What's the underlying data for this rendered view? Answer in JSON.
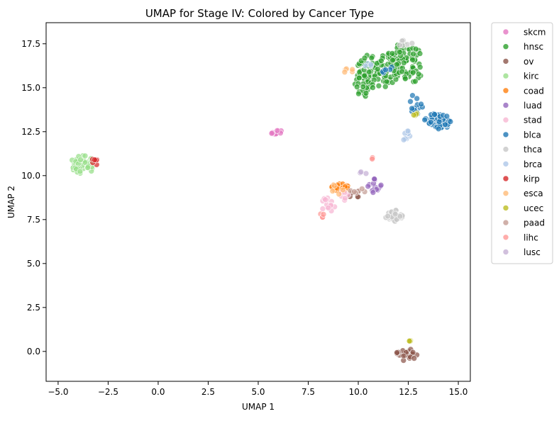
{
  "chart_data": {
    "type": "scatter",
    "title": "UMAP for Stage IV: Colored by Cancer Type",
    "xlabel": "UMAP 1",
    "ylabel": "UMAP 2",
    "xlim": [
      -5.6,
      15.6
    ],
    "ylim": [
      -1.7,
      18.7
    ],
    "xticks": [
      -5.0,
      -2.5,
      0.0,
      2.5,
      5.0,
      7.5,
      10.0,
      12.5,
      15.0
    ],
    "xtick_labels": [
      "−5.0",
      "−2.5",
      "0.0",
      "2.5",
      "5.0",
      "7.5",
      "10.0",
      "12.5",
      "15.0"
    ],
    "yticks": [
      0.0,
      2.5,
      5.0,
      7.5,
      10.0,
      12.5,
      15.0,
      17.5
    ],
    "ytick_labels": [
      "0.0",
      "2.5",
      "5.0",
      "7.5",
      "10.0",
      "12.5",
      "15.0",
      "17.5"
    ],
    "grid": false,
    "legend_position": "outside-right",
    "series": [
      {
        "name": "skcm",
        "color": "#e377c2",
        "clusters": [
          {
            "cx": 6.0,
            "cy": 12.45,
            "rx": 0.35,
            "ry": 0.18,
            "n": 10
          }
        ]
      },
      {
        "name": "hnsc",
        "color": "#2ca02c",
        "clusters": [
          {
            "cx": 11.0,
            "cy": 16.0,
            "rx": 1.1,
            "ry": 1.0,
            "n": 90
          },
          {
            "cx": 12.3,
            "cy": 16.6,
            "rx": 0.9,
            "ry": 1.0,
            "n": 60
          },
          {
            "cx": 10.3,
            "cy": 15.0,
            "rx": 0.5,
            "ry": 0.8,
            "n": 20
          },
          {
            "cx": 12.7,
            "cy": 15.6,
            "rx": 0.5,
            "ry": 0.3,
            "n": 10
          }
        ]
      },
      {
        "name": "ov",
        "color": "#8c564b",
        "clusters": [
          {
            "cx": 12.4,
            "cy": -0.2,
            "rx": 0.55,
            "ry": 0.35,
            "n": 25
          },
          {
            "cx": 9.8,
            "cy": 9.0,
            "rx": 0.4,
            "ry": 0.25,
            "n": 5
          }
        ]
      },
      {
        "name": "kirc",
        "color": "#98df8a",
        "clusters": [
          {
            "cx": -3.8,
            "cy": 10.6,
            "rx": 0.6,
            "ry": 0.55,
            "n": 45
          }
        ]
      },
      {
        "name": "coad",
        "color": "#ff7f0e",
        "clusters": [
          {
            "cx": 9.1,
            "cy": 9.3,
            "rx": 0.45,
            "ry": 0.3,
            "n": 25
          }
        ]
      },
      {
        "name": "luad",
        "color": "#9467bd",
        "clusters": [
          {
            "cx": 10.8,
            "cy": 9.4,
            "rx": 0.35,
            "ry": 0.45,
            "n": 15
          }
        ]
      },
      {
        "name": "stad",
        "color": "#f7b6d2",
        "clusters": [
          {
            "cx": 8.5,
            "cy": 8.4,
            "rx": 0.35,
            "ry": 0.5,
            "n": 14
          },
          {
            "cx": 9.3,
            "cy": 8.9,
            "rx": 0.3,
            "ry": 0.3,
            "n": 6
          }
        ]
      },
      {
        "name": "blca",
        "color": "#1f77b4",
        "clusters": [
          {
            "cx": 14.0,
            "cy": 13.1,
            "rx": 0.7,
            "ry": 0.45,
            "n": 55
          },
          {
            "cx": 12.9,
            "cy": 14.1,
            "rx": 0.35,
            "ry": 0.6,
            "n": 15
          },
          {
            "cx": 11.4,
            "cy": 16.1,
            "rx": 0.5,
            "ry": 0.3,
            "n": 6
          }
        ]
      },
      {
        "name": "thca",
        "color": "#c7c7c7",
        "clusters": [
          {
            "cx": 11.8,
            "cy": 7.7,
            "rx": 0.45,
            "ry": 0.35,
            "n": 30
          },
          {
            "cx": 12.3,
            "cy": 17.5,
            "rx": 0.4,
            "ry": 0.2,
            "n": 8
          }
        ]
      },
      {
        "name": "brca",
        "color": "#aec7e8",
        "clusters": [
          {
            "cx": 12.4,
            "cy": 12.3,
            "rx": 0.2,
            "ry": 0.4,
            "n": 8
          },
          {
            "cx": 10.5,
            "cy": 16.2,
            "rx": 0.3,
            "ry": 0.3,
            "n": 4
          }
        ]
      },
      {
        "name": "kirp",
        "color": "#d62728",
        "clusters": [
          {
            "cx": -3.15,
            "cy": 10.8,
            "rx": 0.15,
            "ry": 0.25,
            "n": 6
          }
        ]
      },
      {
        "name": "esca",
        "color": "#ffbb78",
        "clusters": [
          {
            "cx": 9.6,
            "cy": 15.95,
            "rx": 0.4,
            "ry": 0.15,
            "n": 5
          },
          {
            "cx": 9.0,
            "cy": 9.2,
            "rx": 0.3,
            "ry": 0.3,
            "n": 4
          }
        ]
      },
      {
        "name": "ucec",
        "color": "#bcbd22",
        "clusters": [
          {
            "cx": 12.55,
            "cy": 0.6,
            "rx": 0.1,
            "ry": 0.1,
            "n": 3
          },
          {
            "cx": 12.8,
            "cy": 13.5,
            "rx": 0.2,
            "ry": 0.15,
            "n": 4
          }
        ]
      },
      {
        "name": "paad",
        "color": "#c49c94",
        "clusters": [
          {
            "cx": 10.0,
            "cy": 9.1,
            "rx": 0.4,
            "ry": 0.2,
            "n": 6
          }
        ]
      },
      {
        "name": "lihc",
        "color": "#ff9896",
        "clusters": [
          {
            "cx": 10.75,
            "cy": 10.95,
            "rx": 0.08,
            "ry": 0.08,
            "n": 3
          },
          {
            "cx": 8.2,
            "cy": 7.8,
            "rx": 0.15,
            "ry": 0.2,
            "n": 4
          }
        ]
      },
      {
        "name": "lusc",
        "color": "#c5b0d5",
        "clusters": [
          {
            "cx": 10.2,
            "cy": 10.15,
            "rx": 0.2,
            "ry": 0.1,
            "n": 3
          }
        ]
      }
    ]
  }
}
